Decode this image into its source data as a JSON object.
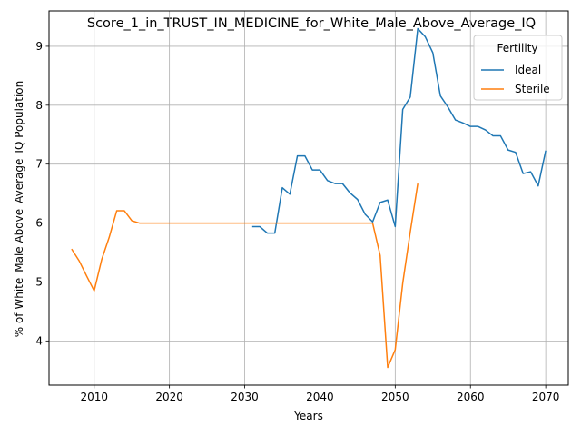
{
  "chart_data": {
    "type": "line",
    "title": "Score_1_in_TRUST_IN_MEDICINE_for_White_Male_Above_Average_IQ",
    "xlabel": "Years",
    "ylabel": "% of White_Male Above_Average_IQ Population",
    "xlim": [
      2004,
      2073
    ],
    "ylim": [
      3.25,
      9.6
    ],
    "xticks": [
      2010,
      2020,
      2030,
      2040,
      2050,
      2060,
      2070
    ],
    "yticks": [
      4,
      5,
      6,
      7,
      8,
      9
    ],
    "grid": true,
    "legend": {
      "title": "Fertility",
      "placement": "top-right"
    },
    "series": [
      {
        "name": "Ideal",
        "color": "#1f77b4",
        "x": [
          2031,
          2032,
          2033,
          2034,
          2035,
          2036,
          2037,
          2038,
          2039,
          2040,
          2041,
          2042,
          2043,
          2044,
          2045,
          2046,
          2047,
          2048,
          2049,
          2050,
          2051,
          2052,
          2053,
          2054,
          2055,
          2056,
          2057,
          2058,
          2059,
          2060,
          2061,
          2062,
          2063,
          2064,
          2065,
          2066,
          2067,
          2068,
          2069,
          2070
        ],
        "y": [
          5.94,
          5.94,
          5.83,
          5.83,
          6.6,
          6.49,
          7.14,
          7.14,
          6.9,
          6.9,
          6.72,
          6.67,
          6.67,
          6.51,
          6.4,
          6.15,
          6.02,
          6.35,
          6.39,
          5.94,
          7.93,
          8.14,
          9.3,
          9.16,
          8.89,
          8.16,
          7.97,
          7.75,
          7.7,
          7.64,
          7.64,
          7.58,
          7.48,
          7.48,
          7.24,
          7.2,
          6.84,
          6.87,
          6.63,
          7.23
        ]
      },
      {
        "name": "Sterile",
        "color": "#ff7f0e",
        "x": [
          2007,
          2008,
          2009,
          2010,
          2011,
          2012,
          2013,
          2014,
          2015,
          2016,
          2017,
          2018,
          2019,
          2020,
          2021,
          2022,
          2023,
          2024,
          2025,
          2026,
          2027,
          2028,
          2029,
          2030,
          2031,
          2032,
          2033,
          2034,
          2035,
          2036,
          2037,
          2038,
          2039,
          2040,
          2041,
          2042,
          2043,
          2044,
          2045,
          2046,
          2047,
          2048,
          2049,
          2050,
          2051,
          2052,
          2053
        ],
        "y": [
          5.56,
          5.36,
          5.1,
          4.85,
          5.38,
          5.76,
          6.21,
          6.21,
          6.04,
          6.0,
          6.0,
          6.0,
          6.0,
          6.0,
          6.0,
          6.0,
          6.0,
          6.0,
          6.0,
          6.0,
          6.0,
          6.0,
          6.0,
          6.0,
          6.0,
          6.0,
          6.0,
          6.0,
          6.0,
          6.0,
          6.0,
          6.0,
          6.0,
          6.0,
          6.0,
          6.0,
          6.0,
          6.0,
          6.0,
          6.0,
          6.0,
          5.45,
          3.55,
          3.85,
          4.98,
          5.85,
          6.67
        ]
      }
    ]
  }
}
